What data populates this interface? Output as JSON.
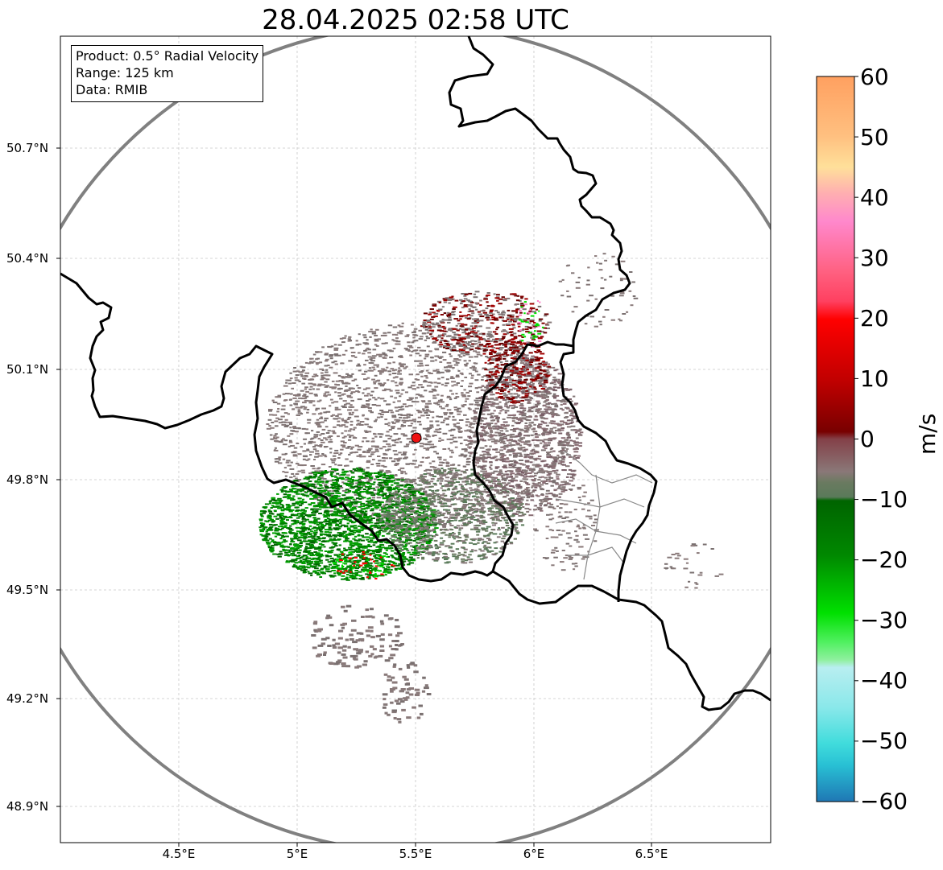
{
  "title": "28.04.2025 02:58 UTC",
  "info": {
    "product": "Product: 0.5° Radial Velocity",
    "range": "Range: 125 km",
    "source": "Data: RMIB"
  },
  "map": {
    "extent_lon": [
      4.0,
      7.0
    ],
    "extent_lat": [
      48.8,
      51.0
    ],
    "radar_site": {
      "lon": 5.505,
      "lat": 49.914
    },
    "x_ticks": [
      "4.5°E",
      "5°E",
      "5.5°E",
      "6°E",
      "6.5°E"
    ],
    "y_ticks": [
      "50.7°N",
      "50.4°N",
      "50.1°N",
      "49.8°N",
      "49.5°N",
      "49.2°N",
      "48.9°N"
    ]
  },
  "colorbar": {
    "unit": "m/s",
    "min": -60,
    "max": 60,
    "tick_labels": [
      "60",
      "50",
      "40",
      "30",
      "20",
      "10",
      "0",
      "−10",
      "−20",
      "−30",
      "−40",
      "−50",
      "−60"
    ]
  },
  "colors": {
    "neg_strong": "#1f77b4",
    "cyan": "#2ad8e0",
    "green_bright": "#00e000",
    "green_dark": "#006400",
    "zero_gray": "#857878",
    "red": "#ff0000",
    "dark_red": "#640000",
    "pink": "#ff88cc",
    "orange": "#ffa060"
  }
}
